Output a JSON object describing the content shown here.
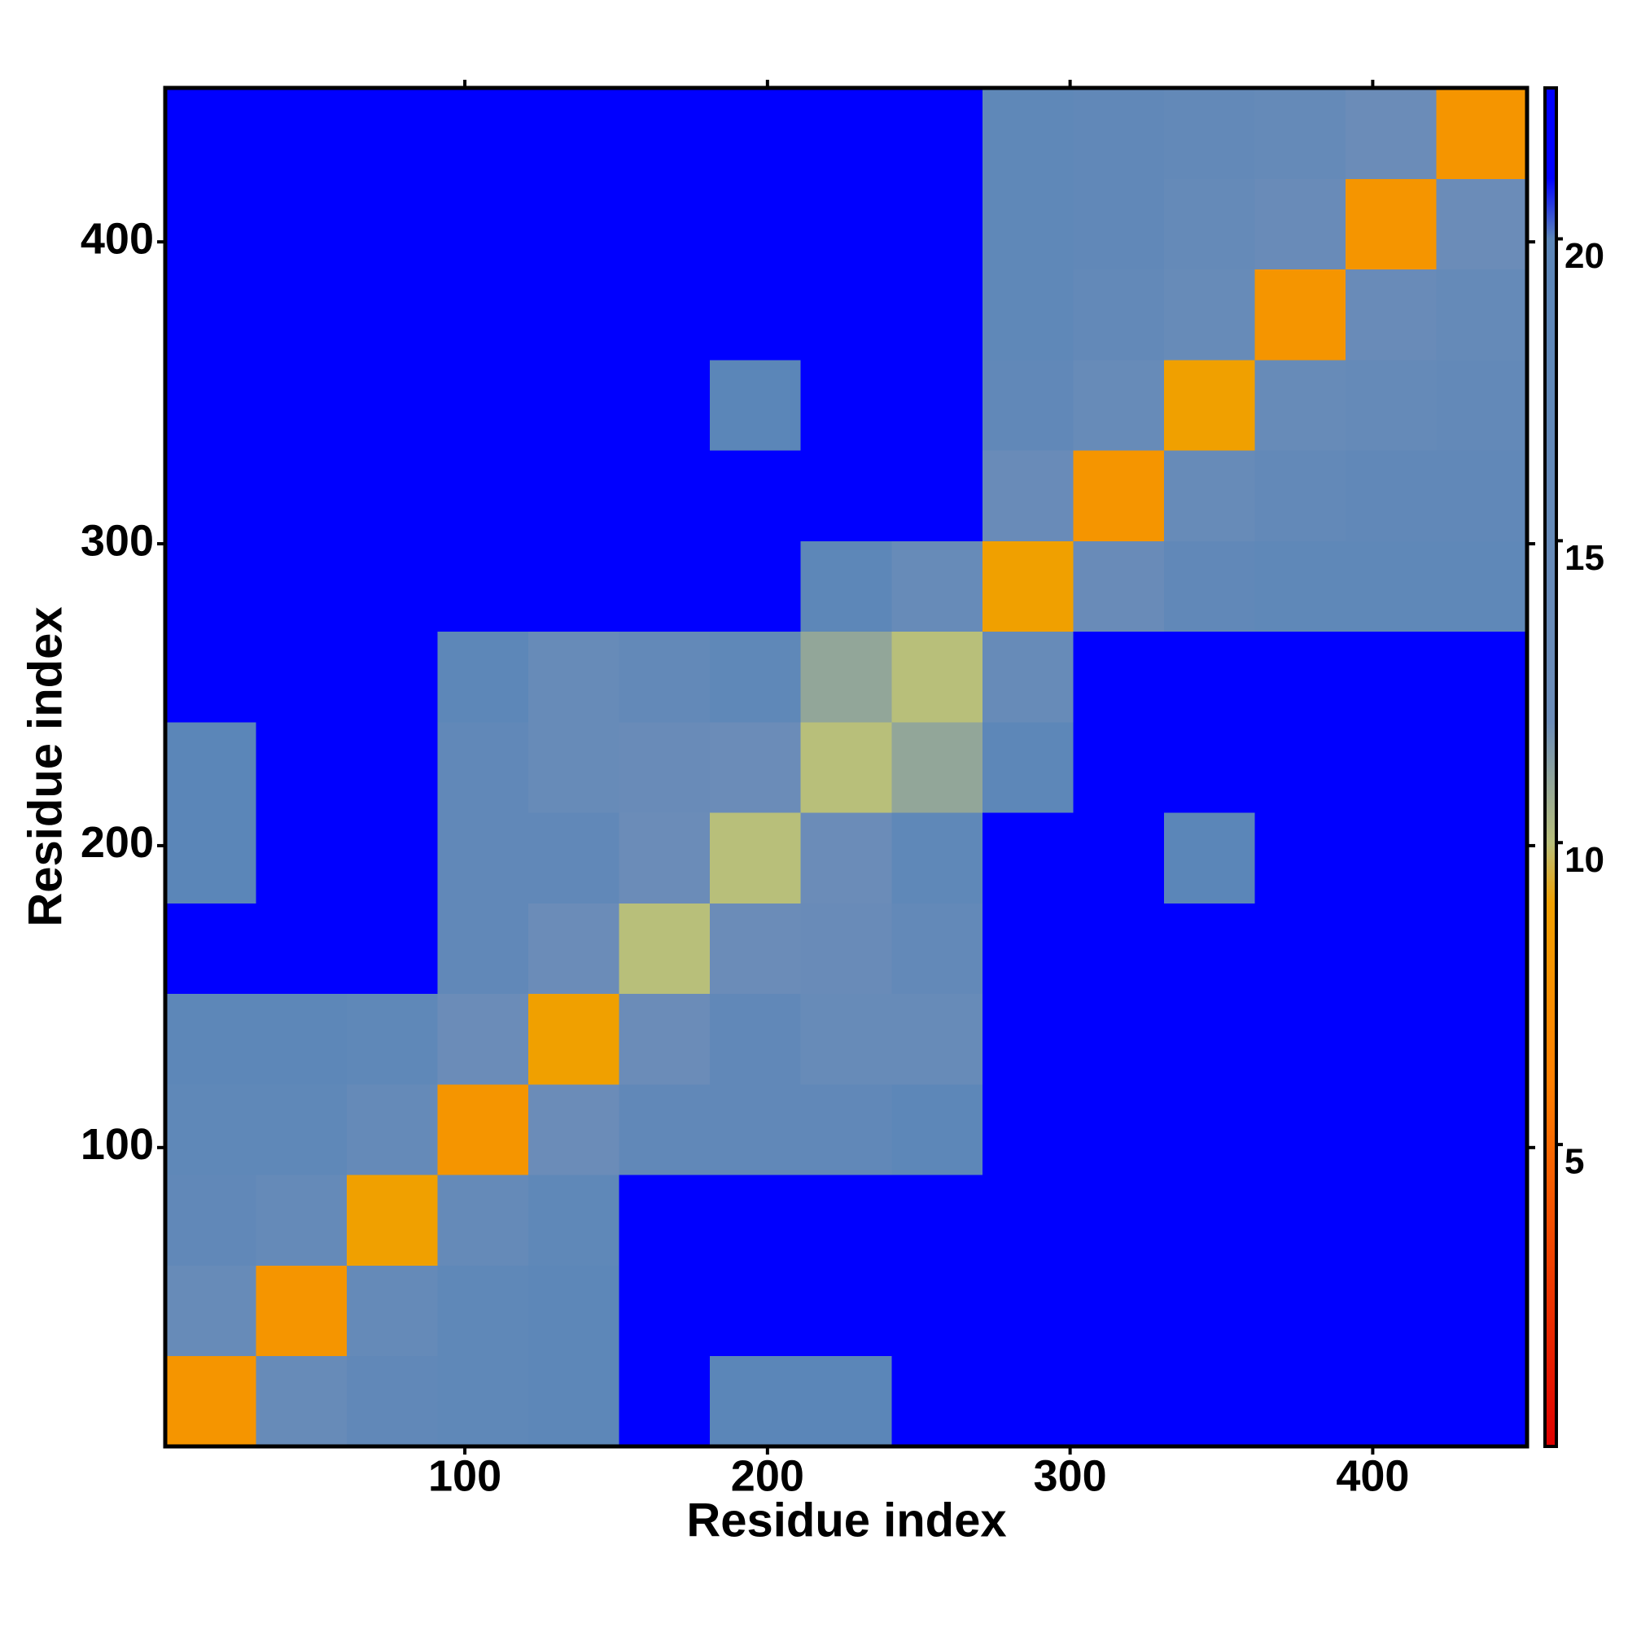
{
  "chart_data": {
    "type": "heatmap",
    "x_label": "Residue index",
    "y_label": "Residue index",
    "xbins": [
      1,
      31,
      61,
      91,
      121,
      151,
      181,
      211,
      241,
      271,
      301,
      331,
      361,
      391,
      421,
      451
    ],
    "ybins": [
      1,
      31,
      61,
      91,
      121,
      151,
      181,
      211,
      241,
      271,
      301,
      331,
      361,
      391,
      421,
      451
    ],
    "xlim": [
      1,
      451
    ],
    "ylim": [
      1,
      451
    ],
    "xticks": [
      100,
      200,
      300,
      400
    ],
    "yticks": [
      100,
      200,
      300,
      400
    ],
    "z": [
      [
        8,
        14,
        17,
        18,
        19,
        21,
        20,
        20,
        21,
        22,
        22,
        22,
        22,
        22,
        22
      ],
      [
        14,
        8,
        15,
        18,
        19,
        21,
        21,
        21,
        22,
        22,
        22,
        22,
        22,
        22,
        22
      ],
      [
        17,
        15,
        9,
        15,
        18,
        21,
        21,
        21,
        21,
        22,
        22,
        22,
        22,
        22,
        22
      ],
      [
        18,
        18,
        15,
        8,
        12,
        17,
        17,
        17,
        19,
        21,
        22,
        22,
        22,
        22,
        22
      ],
      [
        19,
        19,
        18,
        12,
        9,
        12,
        17,
        14,
        14,
        21,
        21,
        22,
        22,
        22,
        22
      ],
      [
        21,
        21,
        21,
        17,
        12,
        10,
        12,
        13,
        16,
        21,
        22,
        21,
        22,
        22,
        22
      ],
      [
        20,
        21,
        21,
        17,
        17,
        12,
        10,
        12,
        18,
        21,
        21,
        20,
        21,
        21,
        22
      ],
      [
        20,
        21,
        21,
        17,
        14,
        13,
        12,
        10,
        11,
        19,
        21,
        21,
        21,
        21,
        21
      ],
      [
        21,
        22,
        21,
        19,
        14,
        16,
        18,
        11,
        10,
        14,
        21,
        21,
        21,
        22,
        22
      ],
      [
        22,
        22,
        22,
        21,
        21,
        21,
        21,
        19,
        14,
        9,
        13,
        17,
        18,
        18,
        18
      ],
      [
        22,
        22,
        22,
        22,
        21,
        22,
        21,
        21,
        21,
        13,
        8,
        14,
        16,
        17,
        17
      ],
      [
        22,
        22,
        22,
        22,
        22,
        21,
        20,
        21,
        21,
        17,
        14,
        9,
        14,
        15,
        16
      ],
      [
        22,
        22,
        22,
        22,
        22,
        22,
        21,
        21,
        21,
        18,
        16,
        14,
        8,
        13,
        15
      ],
      [
        22,
        22,
        22,
        22,
        22,
        22,
        21,
        21,
        22,
        18,
        17,
        15,
        13,
        8,
        12
      ],
      [
        22,
        22,
        22,
        22,
        22,
        22,
        22,
        21,
        22,
        18,
        17,
        16,
        15,
        12,
        8
      ]
    ],
    "colorscale": [
      [
        0,
        "#e00000"
      ],
      [
        6,
        "#ff7f00"
      ],
      [
        9,
        "#f0a000"
      ],
      [
        10,
        "#b8bf7a"
      ],
      [
        12,
        "#6b8cb8"
      ],
      [
        20,
        "#5b86b8"
      ],
      [
        21,
        "#0000ff"
      ]
    ],
    "colorbar": {
      "lim": [
        0,
        22.5
      ],
      "ticks": [
        5,
        10,
        15,
        20
      ]
    }
  }
}
